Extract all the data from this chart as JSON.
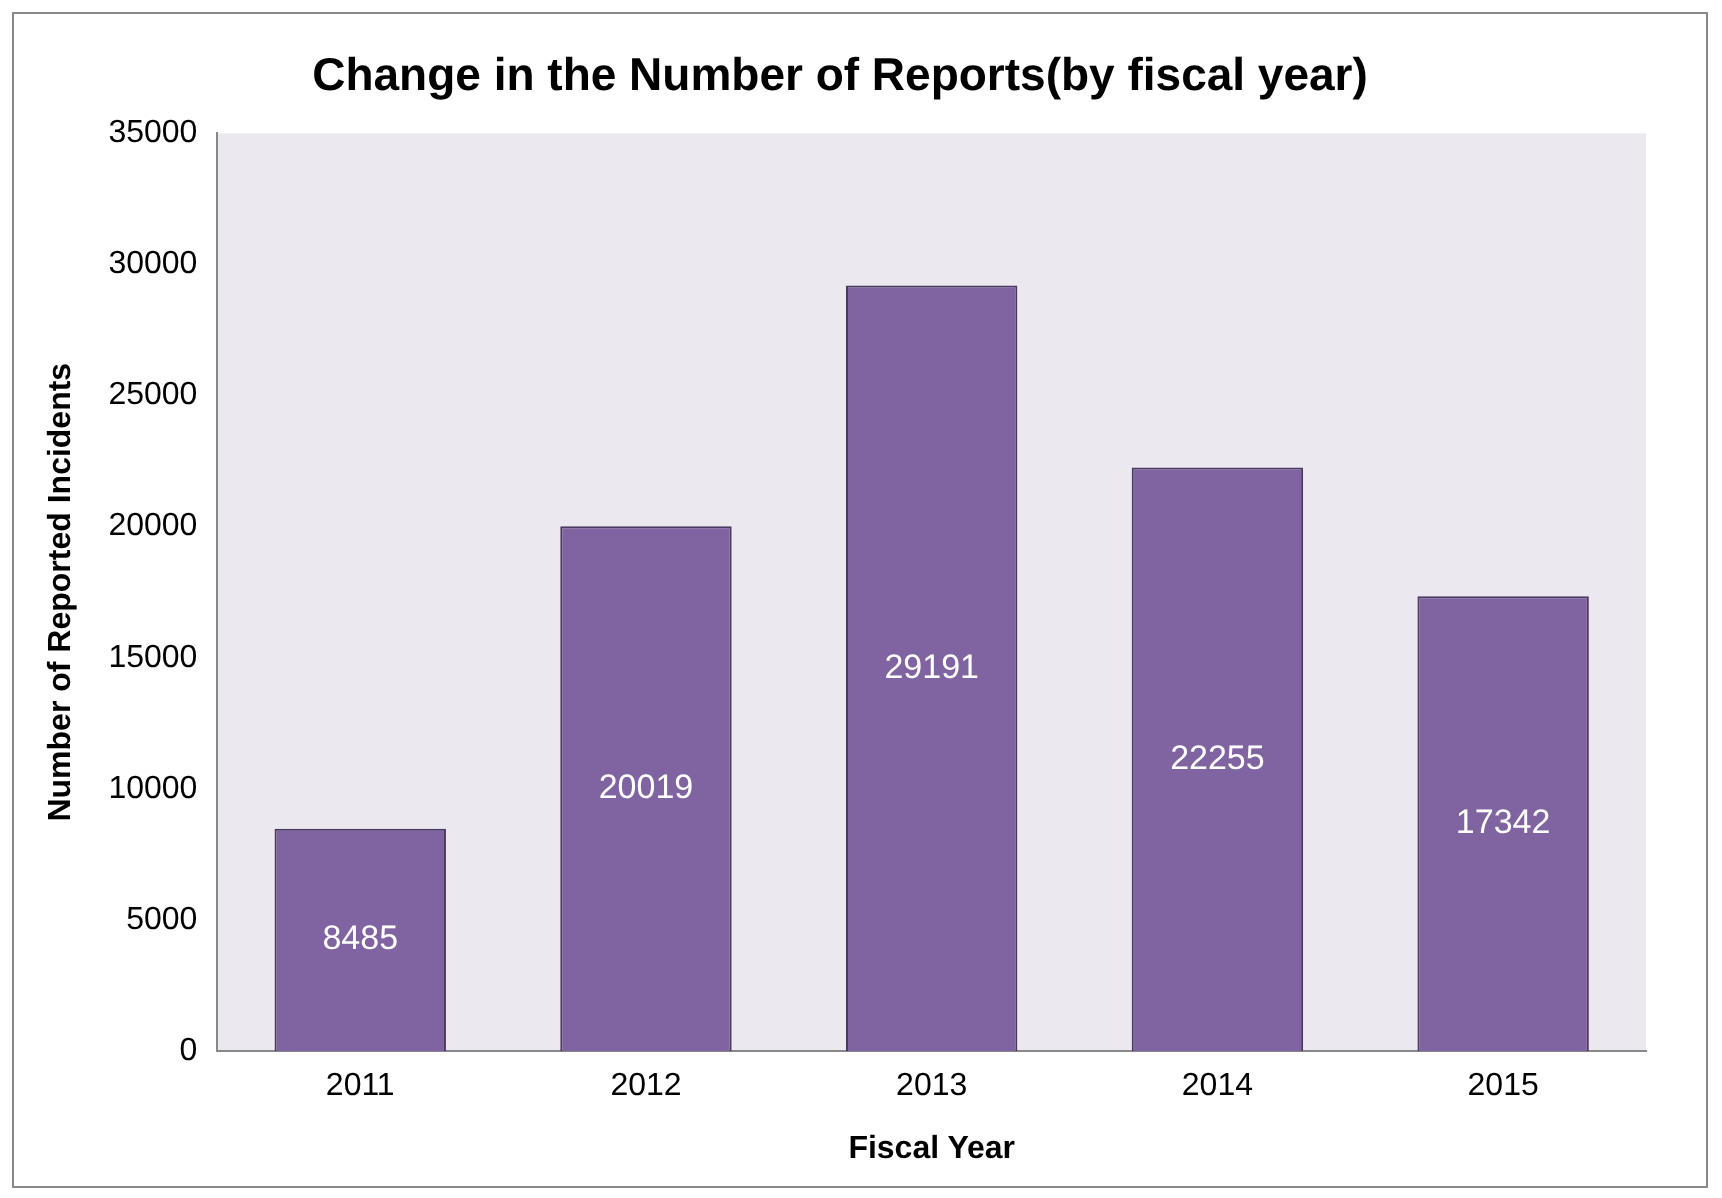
{
  "chart_data": {
    "type": "bar",
    "title": "Change in the Number of Reports(by fiscal year)",
    "xlabel": "Fiscal Year",
    "ylabel": "Number of Reported Incidents",
    "categories": [
      "2011",
      "2012",
      "2013",
      "2014",
      "2015"
    ],
    "values": [
      8485,
      20019,
      29191,
      22255,
      17342
    ],
    "color": "#8064a2",
    "ylim": [
      0,
      35000
    ],
    "yticks": [
      0,
      5000,
      10000,
      15000,
      20000,
      25000,
      30000,
      35000
    ],
    "grid": false,
    "legend": false,
    "data_labels": true
  }
}
